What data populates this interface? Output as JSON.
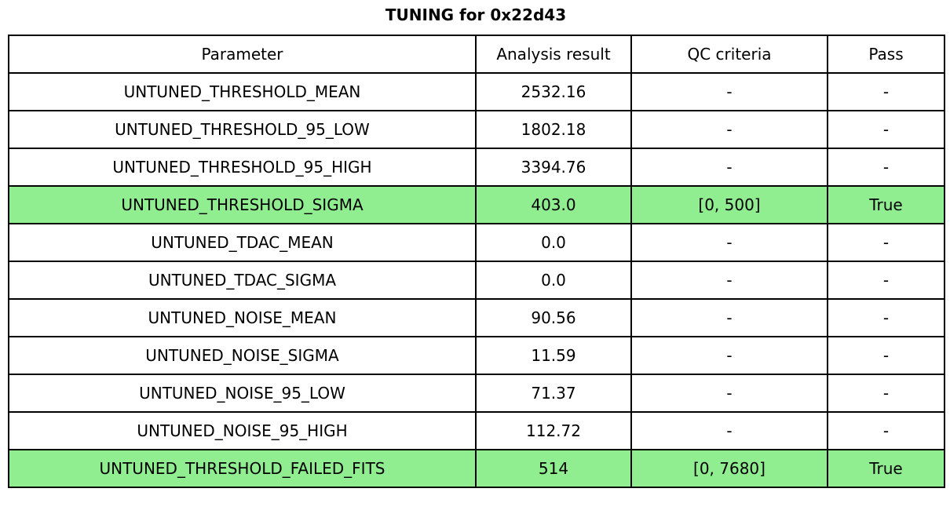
{
  "figure": {
    "title": "TUNING for 0x22d43"
  },
  "colors": {
    "background": "#FFFFFF",
    "text": "#000000",
    "border": "#000000",
    "highlight_row_bg": "#90EE90"
  },
  "chart_data": {
    "type": "table",
    "title": "TUNING for 0x22d43",
    "columns": [
      "Parameter",
      "Analysis result",
      "QC criteria",
      "Pass"
    ],
    "rows": [
      {
        "parameter": "UNTUNED_THRESHOLD_MEAN",
        "analysis_result": "2532.16",
        "qc_criteria": "-",
        "pass": "-",
        "highlight": false
      },
      {
        "parameter": "UNTUNED_THRESHOLD_95_LOW",
        "analysis_result": "1802.18",
        "qc_criteria": "-",
        "pass": "-",
        "highlight": false
      },
      {
        "parameter": "UNTUNED_THRESHOLD_95_HIGH",
        "analysis_result": "3394.76",
        "qc_criteria": "-",
        "pass": "-",
        "highlight": false
      },
      {
        "parameter": "UNTUNED_THRESHOLD_SIGMA",
        "analysis_result": "403.0",
        "qc_criteria": "[0, 500]",
        "pass": "True",
        "highlight": true
      },
      {
        "parameter": "UNTUNED_TDAC_MEAN",
        "analysis_result": "0.0",
        "qc_criteria": "-",
        "pass": "-",
        "highlight": false
      },
      {
        "parameter": "UNTUNED_TDAC_SIGMA",
        "analysis_result": "0.0",
        "qc_criteria": "-",
        "pass": "-",
        "highlight": false
      },
      {
        "parameter": "UNTUNED_NOISE_MEAN",
        "analysis_result": "90.56",
        "qc_criteria": "-",
        "pass": "-",
        "highlight": false
      },
      {
        "parameter": "UNTUNED_NOISE_SIGMA",
        "analysis_result": "11.59",
        "qc_criteria": "-",
        "pass": "-",
        "highlight": false
      },
      {
        "parameter": "UNTUNED_NOISE_95_LOW",
        "analysis_result": "71.37",
        "qc_criteria": "-",
        "pass": "-",
        "highlight": false
      },
      {
        "parameter": "UNTUNED_NOISE_95_HIGH",
        "analysis_result": "112.72",
        "qc_criteria": "-",
        "pass": "-",
        "highlight": false
      },
      {
        "parameter": "UNTUNED_THRESHOLD_FAILED_FITS",
        "analysis_result": "514",
        "qc_criteria": "[0, 7680]",
        "pass": "True",
        "highlight": true
      }
    ]
  }
}
